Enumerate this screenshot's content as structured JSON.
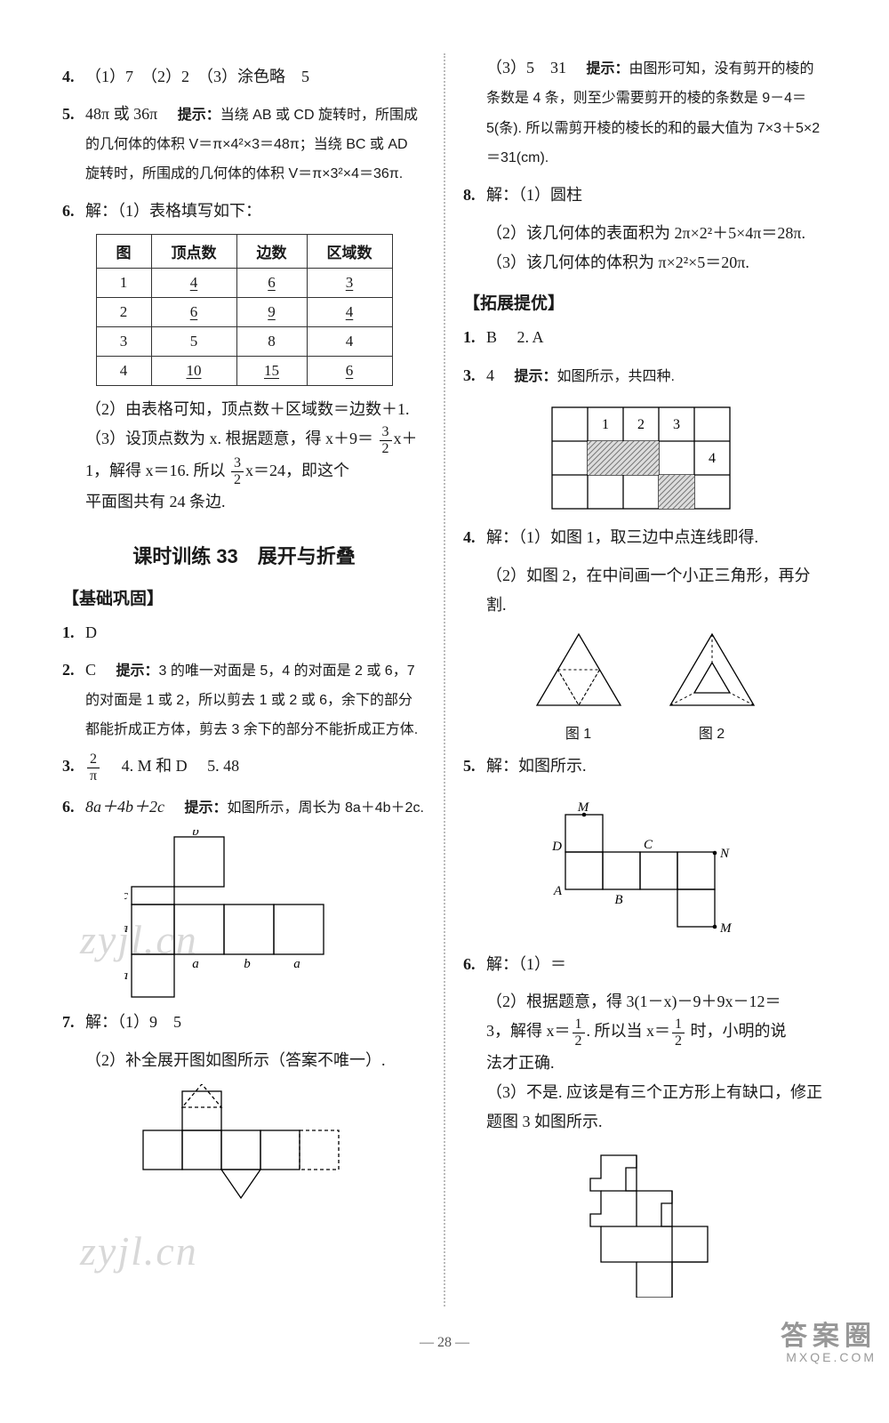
{
  "left": {
    "q4": "（1）7　（2）2　（3）涂色略　5",
    "q5_ans": "48π 或 36π　",
    "q5_hint_label": "提示：",
    "q5_hint": "当绕 AB 或 CD 旋转时，所围成的几何体的体积 V＝π×4²×3＝48π；当绕 BC 或 AD 旋转时，所围成的几何体的体积 V＝π×3²×4＝36π.",
    "q6_head": "解：（1）表格填写如下：",
    "table": {
      "headers": [
        "图",
        "顶点数",
        "边数",
        "区域数"
      ],
      "rows": [
        [
          "1",
          "4",
          "6",
          "3"
        ],
        [
          "2",
          "6",
          "9",
          "4"
        ],
        [
          "3",
          "5",
          "8",
          "4"
        ],
        [
          "4",
          "10",
          "15",
          "6"
        ]
      ],
      "underline_map": [
        [
          true,
          true,
          true
        ],
        [
          true,
          true,
          true
        ],
        [
          false,
          false,
          false
        ],
        [
          true,
          true,
          true
        ]
      ]
    },
    "q6_p2": "（2）由表格可知，顶点数＋区域数＝边数＋1.",
    "q6_p3a": "（3）设顶点数为 x. 根据题意，得 x＋9＝",
    "q6_p3b_before": "",
    "q6_p3b_after": "x＋1，解得 x＝16. 所以",
    "q6_p3c": "x＝24，即这个",
    "q6_p3d": "平面图共有 24 条边.",
    "section_title": "课时训练 33　展开与折叠",
    "sec_head": "【基础巩固】",
    "b1": "D",
    "b2_ans": "C　",
    "b2_hint_label": "提示：",
    "b2_hint": "3 的唯一对面是 5，4 的对面是 2 或 6，7 的对面是 1 或 2，所以剪去 1 或 2 或 6，余下的部分都能折成正方体，剪去 3 余下的部分不能折成正方体.",
    "b3_after": "　4.  M 和 D　  5.  48",
    "b6_ans": "8a＋4b＋2c　",
    "b6_hint_label": "提示：",
    "b6_hint": "如图所示，周长为 8a＋4b＋2c.",
    "b7_1": "解：（1）9　5",
    "b7_2": "（2）补全展开图如图所示（答案不唯一）."
  },
  "right": {
    "r_cont_a": "（3）5　31　",
    "r_cont_hint_label": "提示：",
    "r_cont_hint": "由图形可知，没有剪开的棱的条数是 4 条，则至少需要剪开的棱的条数是 9－4＝5(条). 所以需剪开棱的棱长的和的最大值为 7×3＋5×2＝31(cm).",
    "r8_head": "解：（1）圆柱",
    "r8_2": "（2）该几何体的表面积为 2π×2²＋5×4π＝28π.",
    "r8_3": "（3）该几何体的体积为 π×2²×5＝20π.",
    "ext_head": "【拓展提优】",
    "e1": "B　 2.  A",
    "e3_ans": "4　",
    "e3_hint_label": "提示：",
    "e3_hint": "如图所示，共四种.",
    "grid_labels": [
      "1",
      "2",
      "3",
      "4"
    ],
    "e4_1": "解：（1）如图 1，取三边中点连线即得.",
    "e4_2": "（2）如图 2，在中间画一个小正三角形，再分割.",
    "fig1_cap": "图 1",
    "fig2_cap": "图 2",
    "e5": "解：如图所示.",
    "e5_labels": {
      "M": "M",
      "D": "D",
      "C": "C",
      "A": "A",
      "B": "B",
      "N": "N",
      "M2": "M"
    },
    "e6_1": "解：（1）＝",
    "e6_2a": "（2）根据题意，得 3(1－x)－9＋9x－12＝",
    "e6_2b_before": "3，解得 x＝",
    "e6_2b_mid": ". 所以当 x＝",
    "e6_2b_after": " 时，小明的说",
    "e6_2c": "法才正确.",
    "e6_3": "（3）不是. 应该是有三个正方形上有缺口，修正题图 3 如图所示."
  },
  "page_num": "28",
  "watermark": "zyjl.cn",
  "corner_big": "答案圈",
  "corner_small": "MXQE.COM"
}
